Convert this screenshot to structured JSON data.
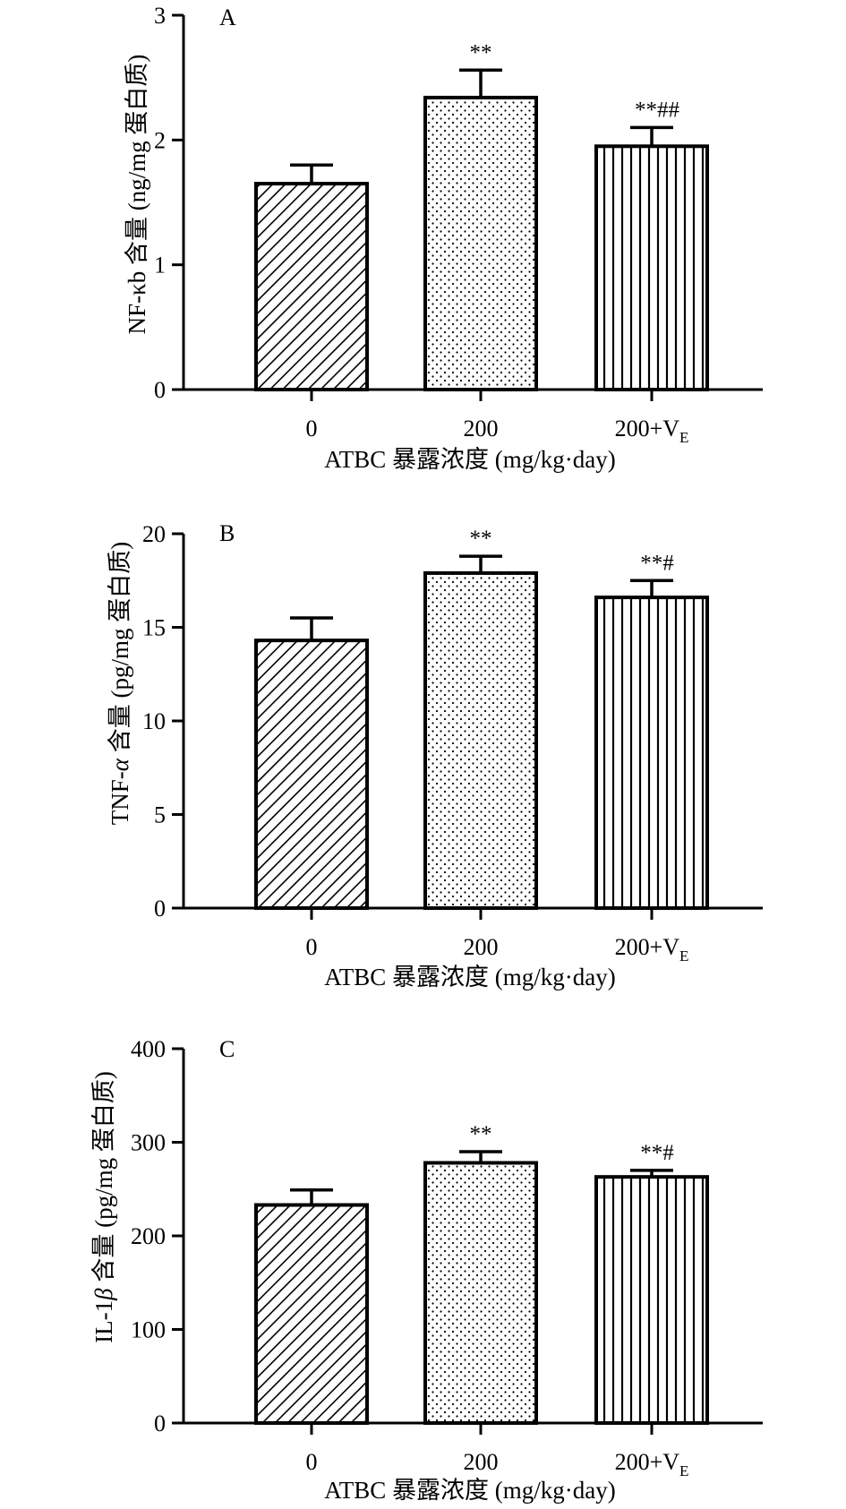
{
  "chart_data": [
    {
      "type": "bar",
      "panel_label": "A",
      "categories": [
        "0",
        "200",
        "200+V"
      ],
      "category_subscripts": [
        "",
        "",
        "E"
      ],
      "values": [
        1.65,
        2.34,
        1.95
      ],
      "errors": [
        0.15,
        0.22,
        0.15
      ],
      "significance": [
        "",
        "**",
        "**##"
      ],
      "ylim": [
        0,
        3
      ],
      "yticks": [
        "0",
        "1",
        "2",
        "3"
      ],
      "ylabel": "NF-κb 含量 (ng/mg 蛋白质)",
      "xlabel": "ATBC 暴露浓度 (mg/kg·day)",
      "patterns": [
        "diagonal-hatch",
        "dots",
        "vertical-lines"
      ]
    },
    {
      "type": "bar",
      "panel_label": "B",
      "categories": [
        "0",
        "200",
        "200+V"
      ],
      "category_subscripts": [
        "",
        "",
        "E"
      ],
      "values": [
        14.3,
        17.9,
        16.6
      ],
      "errors": [
        1.2,
        0.9,
        0.9
      ],
      "significance": [
        "",
        "**",
        "**#"
      ],
      "ylim": [
        0,
        20
      ],
      "yticks": [
        "0",
        "5",
        "10",
        "15",
        "20"
      ],
      "ylabel_prefix": "TNF-",
      "ylabel_greek": "α",
      "ylabel_suffix": " 含量 (pg/mg 蛋白质)",
      "xlabel": "ATBC 暴露浓度 (mg/kg·day)",
      "patterns": [
        "diagonal-hatch",
        "dots",
        "vertical-lines"
      ]
    },
    {
      "type": "bar",
      "panel_label": "C",
      "categories": [
        "0",
        "200",
        "200+V"
      ],
      "category_subscripts": [
        "",
        "",
        "E"
      ],
      "values": [
        233,
        278,
        263
      ],
      "errors": [
        16,
        12,
        7
      ],
      "significance": [
        "",
        "**",
        "**#"
      ],
      "ylim": [
        0,
        400
      ],
      "yticks": [
        "0",
        "100",
        "200",
        "300",
        "400"
      ],
      "ylabel_prefix": "IL-1",
      "ylabel_greek": "β",
      "ylabel_suffix": " 含量 (pg/mg 蛋白质)",
      "xlabel": "ATBC 暴露浓度 (mg/kg·day)",
      "patterns": [
        "diagonal-hatch",
        "dots",
        "vertical-lines"
      ]
    }
  ],
  "colors": {
    "ink": "#000000",
    "fill": "#ffffff"
  }
}
